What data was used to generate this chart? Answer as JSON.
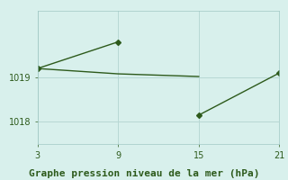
{
  "x": [
    3,
    9,
    15,
    21
  ],
  "y": [
    1019.2,
    1019.8,
    1018.15,
    1019.1
  ],
  "line_color": "#2d5a1b",
  "marker": "D",
  "marker_size": 3,
  "bg_color": "#d8f0ec",
  "grid_color": "#b8d8d4",
  "title": "Graphe pression niveau de la mer (hPa)",
  "title_color": "#2d5a1b",
  "title_fontsize": 8,
  "xlim": [
    3,
    21
  ],
  "ylim": [
    1017.5,
    1020.5
  ],
  "xticks": [
    3,
    9,
    15,
    21
  ],
  "yticks": [
    1018,
    1019
  ],
  "tick_fontsize": 7,
  "tick_color": "#2d5a1b",
  "flat_x": [
    3,
    4,
    5,
    6,
    7,
    8,
    9,
    10,
    11,
    12,
    13,
    14,
    15
  ],
  "flat_y": [
    1019.2,
    1019.18,
    1019.16,
    1019.14,
    1019.12,
    1019.1,
    1019.08,
    1019.07,
    1019.06,
    1019.05,
    1019.04,
    1019.03,
    1019.02
  ]
}
